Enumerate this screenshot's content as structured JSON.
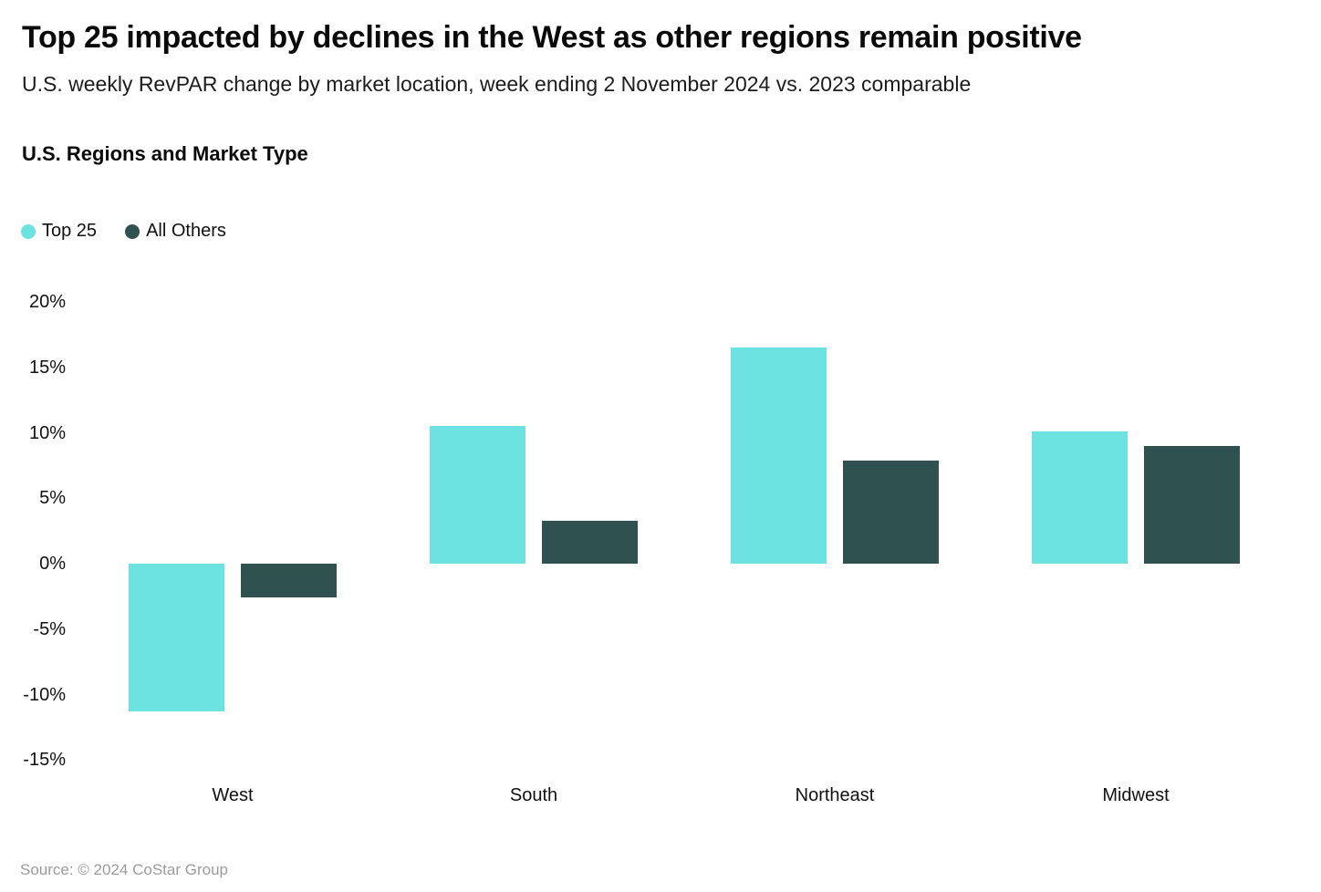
{
  "header": {
    "title": "Top 25 impacted by declines in the West as other regions remain positive",
    "subtitle": "U.S. weekly RevPAR change by market location, week ending 2 November 2024 vs. 2023 comparable"
  },
  "section_title": "U.S. Regions and Market Type",
  "legend": [
    {
      "label": "Top 25",
      "color": "#6CE3E1"
    },
    {
      "label": "All Others",
      "color": "#2F5251"
    }
  ],
  "chart_data": {
    "type": "bar",
    "title": "U.S. Regions and Market Type",
    "categories": [
      "West",
      "South",
      "Northeast",
      "Midwest"
    ],
    "series": [
      {
        "name": "Top 25",
        "color": "#6CE3E1",
        "values": [
          -11.3,
          10.5,
          16.5,
          10.1
        ]
      },
      {
        "name": "All Others",
        "color": "#2F5251",
        "values": [
          -2.6,
          3.3,
          7.9,
          9.0
        ]
      }
    ],
    "unit": "%",
    "xlabel": "",
    "ylabel": "",
    "ylim": [
      -15,
      20
    ],
    "y_tick_values": [
      20,
      15,
      10,
      5,
      0,
      -5,
      -10,
      -15
    ],
    "y_tick_labels": [
      "20%",
      "15%",
      "10%",
      "5%",
      "0%",
      "-5%",
      "-10%",
      "-15%"
    ],
    "grid": false,
    "legend_position": "top-left"
  },
  "footer": {
    "source": "Source: © 2024 CoStar Group"
  }
}
